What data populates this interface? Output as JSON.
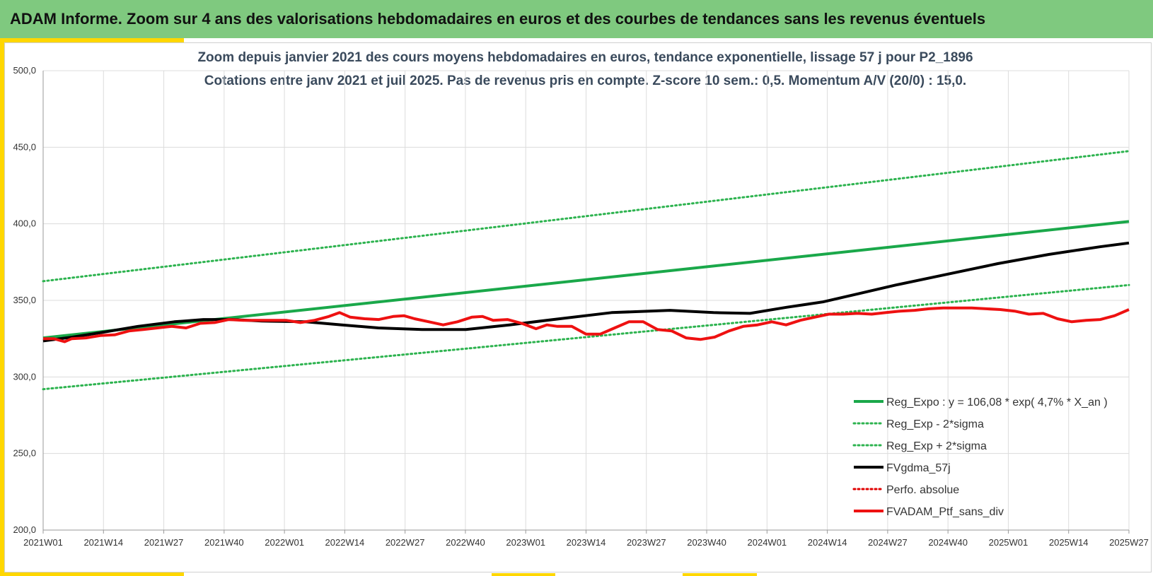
{
  "header": {
    "title": "ADAM Informe. Zoom sur 4 ans des valorisations hebdomadaires en euros et des courbes de tendances sans les revenus éventuels"
  },
  "colors": {
    "header_bg": "#7fc97f",
    "accent": "#ffd700",
    "reg_expo": "#1aa84a",
    "sigma": "#2db34f",
    "fvgdma": "#000000",
    "perfo": "#e00000",
    "fvadam": "#ee1111"
  },
  "chart_data": {
    "type": "line",
    "title": "Zoom depuis janvier 2021 des cours moyens hebdomadaires  en euros, tendance exponentielle, lissage 57 j pour P2_1896",
    "subtitle": "Cotations entre janv 2021 et juil 2025. Pas de revenus pris en compte. Z-score 10 sem.: 0,5. Momentum A/V (20/0) : 15,0.",
    "ylim": [
      200,
      500
    ],
    "yticks": [
      "200,0",
      "250,0",
      "300,0",
      "350,0",
      "400,0",
      "450,0",
      "500,0"
    ],
    "ytick_values": [
      200,
      250,
      300,
      350,
      400,
      450,
      500
    ],
    "xticks": [
      "2021W01",
      "2021W14",
      "2021W27",
      "2021W40",
      "2022W01",
      "2022W14",
      "2022W27",
      "2022W40",
      "2023W01",
      "2023W14",
      "2023W27",
      "2023W40",
      "2024W01",
      "2024W14",
      "2024W27",
      "2024W40",
      "2025W01",
      "2025W14",
      "2025W27"
    ],
    "x_weeks_total": 234,
    "grid": true,
    "legend_position": "bottom-right",
    "series": [
      {
        "name": "Reg_Expo : y = 106,08 * exp( 4,7% *  X_an )",
        "style": "solid-thick",
        "color": "#1aa84a",
        "points": [
          [
            0,
            325.5
          ],
          [
            234,
            401.5
          ]
        ]
      },
      {
        "name": "Reg_Exp - 2*sigma",
        "style": "dotted",
        "color": "#2db34f",
        "points": [
          [
            0,
            292
          ],
          [
            234,
            360
          ]
        ]
      },
      {
        "name": "Reg_Exp + 2*sigma",
        "style": "dotted",
        "color": "#2db34f",
        "points": [
          [
            0,
            362.5
          ],
          [
            234,
            447.5
          ]
        ]
      },
      {
        "name": "FVgdma_57j",
        "style": "solid",
        "color": "#000000",
        "points": [
          [
            0,
            323.5
          ],
          [
            8,
            326
          ],
          [
            16,
            329
          ],
          [
            26,
            333
          ],
          [
            36,
            336
          ],
          [
            44,
            337.5
          ],
          [
            52,
            337.5
          ],
          [
            60,
            336.5
          ],
          [
            72,
            336
          ],
          [
            82,
            334
          ],
          [
            92,
            332
          ],
          [
            104,
            331
          ],
          [
            116,
            331
          ],
          [
            128,
            334
          ],
          [
            140,
            337.5
          ],
          [
            156,
            342
          ],
          [
            172,
            343.5
          ],
          [
            184,
            342
          ],
          [
            194,
            341.5
          ],
          [
            204,
            345.5
          ],
          [
            214,
            349
          ],
          [
            224,
            354.5
          ],
          [
            234,
            360
          ],
          [
            248,
            367
          ],
          [
            262,
            374
          ],
          [
            276,
            380
          ],
          [
            290,
            385
          ],
          [
            298,
            387.5
          ]
        ]
      },
      {
        "name": "Perfo. absolue",
        "style": "dotted",
        "color": "#e00000",
        "points": []
      },
      {
        "name": "FVADAM_Ptf_sans_div",
        "style": "solid-thick",
        "color": "#ee1111",
        "points": [
          [
            0,
            325
          ],
          [
            3,
            325
          ],
          [
            6,
            323
          ],
          [
            8,
            325
          ],
          [
            12,
            325.5
          ],
          [
            16,
            327
          ],
          [
            20,
            327.5
          ],
          [
            24,
            330
          ],
          [
            28,
            331
          ],
          [
            32,
            332
          ],
          [
            36,
            333
          ],
          [
            40,
            332
          ],
          [
            44,
            335
          ],
          [
            48,
            335.5
          ],
          [
            52,
            337.5
          ],
          [
            56,
            337
          ],
          [
            60,
            337
          ],
          [
            64,
            337
          ],
          [
            68,
            337
          ],
          [
            72,
            335.5
          ],
          [
            76,
            337
          ],
          [
            80,
            339.5
          ],
          [
            83,
            342
          ],
          [
            86,
            339
          ],
          [
            90,
            338
          ],
          [
            94,
            337.5
          ],
          [
            98,
            339.5
          ],
          [
            101,
            340
          ],
          [
            104,
            338
          ],
          [
            108,
            336
          ],
          [
            112,
            334
          ],
          [
            116,
            336
          ],
          [
            120,
            339
          ],
          [
            123,
            339.5
          ],
          [
            126,
            337
          ],
          [
            130,
            337.5
          ],
          [
            134,
            335
          ],
          [
            138,
            331.5
          ],
          [
            141,
            334
          ],
          [
            144,
            333
          ],
          [
            148,
            333
          ],
          [
            152,
            328
          ],
          [
            156,
            328
          ],
          [
            160,
            332
          ],
          [
            164,
            336
          ],
          [
            168,
            336
          ],
          [
            172,
            331
          ],
          [
            176,
            330
          ],
          [
            180,
            325.5
          ],
          [
            184,
            324.5
          ],
          [
            188,
            326
          ],
          [
            192,
            330
          ],
          [
            196,
            333
          ],
          [
            200,
            334
          ],
          [
            204,
            336
          ],
          [
            208,
            334
          ],
          [
            212,
            337
          ],
          [
            216,
            339
          ],
          [
            220,
            341
          ],
          [
            224,
            341
          ],
          [
            228,
            341.5
          ],
          [
            232,
            341
          ],
          [
            236,
            342
          ],
          [
            240,
            343
          ],
          [
            244,
            343.5
          ],
          [
            248,
            344.5
          ],
          [
            252,
            345
          ],
          [
            256,
            345
          ],
          [
            260,
            345
          ],
          [
            264,
            344.5
          ],
          [
            268,
            344
          ],
          [
            272,
            343
          ],
          [
            276,
            341
          ],
          [
            280,
            341.5
          ],
          [
            284,
            338
          ],
          [
            288,
            336
          ],
          [
            292,
            337
          ],
          [
            296,
            337.5
          ],
          [
            300,
            340
          ],
          [
            304,
            344
          ]
        ]
      }
    ]
  }
}
